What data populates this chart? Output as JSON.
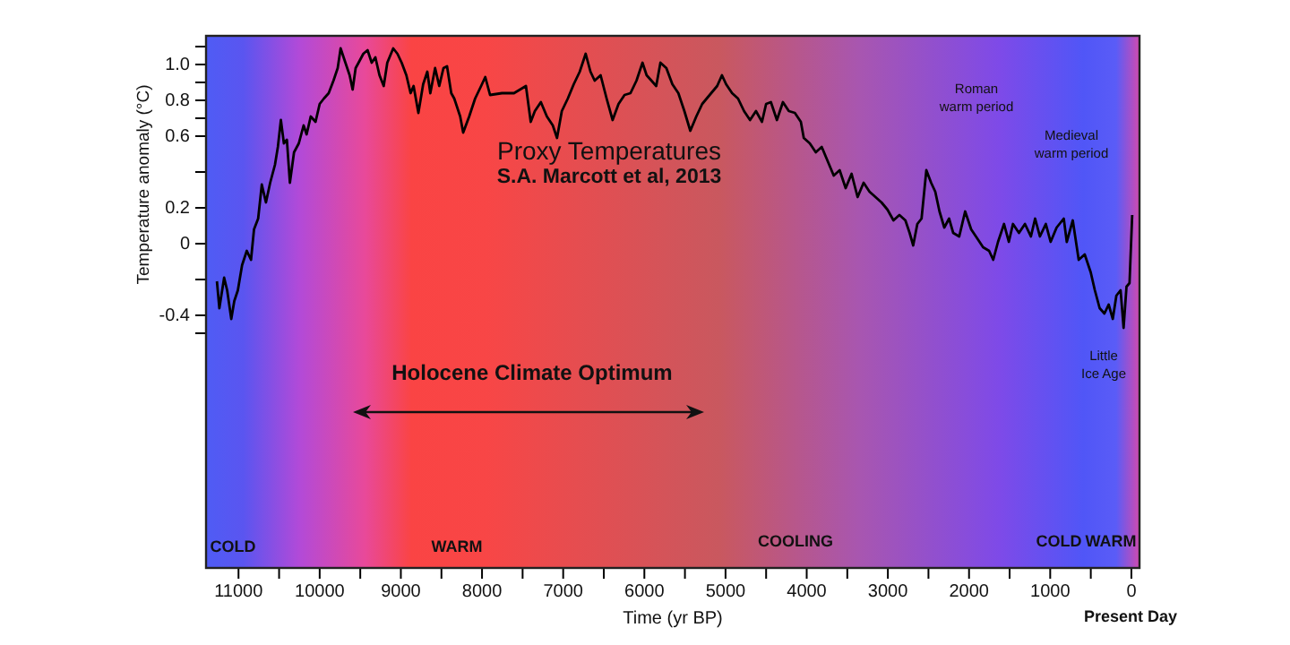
{
  "chart_data": {
    "type": "line",
    "title": "Proxy Temperatures",
    "subtitle": "S.A. Marcott et al, 2013",
    "xlabel": "Time (yr BP)",
    "ylabel": "Temperature anomaly (°C)",
    "annotations": [
      "Roman warm period",
      "Medieval warm period",
      "Little Ice Age",
      "Holocene Climate Optimum",
      "COLD",
      "WARM",
      "COOLING",
      "COLD",
      "WARM",
      "Present Day"
    ],
    "xlim": [
      11400,
      -100
    ],
    "xticks": [
      11000,
      {
        "value": 10500,
        "label": null
      },
      10000,
      {
        "value": 9500,
        "label": null
      },
      9000,
      {
        "value": 8500,
        "label": null
      },
      8000,
      {
        "value": 7500,
        "label": null
      },
      7000,
      {
        "value": 6500,
        "label": null
      },
      6000,
      {
        "value": 5500,
        "label": null
      },
      5000,
      {
        "value": 4500,
        "label": null
      },
      4000,
      {
        "value": 3500,
        "label": null
      },
      3000,
      {
        "value": 2500,
        "label": null
      },
      2000,
      {
        "value": 1500,
        "label": null
      },
      1000,
      {
        "value": 500,
        "label": null
      },
      0
    ],
    "ylim": [
      -1.81,
      1.16
    ],
    "yticks": [
      {
        "value": 1.1,
        "label": null
      },
      {
        "value": 1,
        "label": "1.0"
      },
      {
        "value": 0.9,
        "label": null
      },
      0.8,
      {
        "value": 0.7,
        "label": null
      },
      0.6,
      {
        "value": 0.4,
        "label": null
      },
      0.2,
      0,
      {
        "value": -0.2,
        "label": null
      },
      -0.4,
      {
        "value": -0.5,
        "label": null
      }
    ],
    "series": [
      {
        "color": "#000000",
        "x": [
          11266,
          11236,
          11177,
          11140,
          11089,
          11052,
          11008,
          10956,
          10898,
          10846,
          10809,
          10758,
          10713,
          10662,
          10610,
          10551,
          10515,
          10478,
          10441,
          10404,
          10367,
          10316,
          10257,
          10198,
          10161,
          10110,
          10051,
          10000,
          9948,
          9889,
          9830,
          9778,
          9742,
          9683,
          9631,
          9594,
          9557,
          9521,
          9462,
          9410,
          9359,
          9314,
          9263,
          9211,
          9167,
          9094,
          9042,
          8990,
          8932,
          8880,
          8843,
          8784,
          8725,
          8674,
          8637,
          8578,
          8527,
          8475,
          8431,
          8379,
          8342,
          8269,
          8232,
          8158,
          8085,
          8011,
          7960,
          7901,
          7754,
          7606,
          7459,
          7400,
          7349,
          7275,
          7201,
          7128,
          7076,
          7017,
          6943,
          6870,
          6796,
          6723,
          6664,
          6612,
          6539,
          6465,
          6391,
          6318,
          6244,
          6171,
          6097,
          6023,
          5972,
          5913,
          5854,
          5802,
          5729,
          5655,
          5581,
          5507,
          5434,
          5360,
          5287,
          5177,
          5103,
          5044,
          4993,
          4919,
          4846,
          4772,
          4698,
          4625,
          4551,
          4500,
          4441,
          4367,
          4293,
          4220,
          4146,
          4072,
          4036,
          3962,
          3888,
          3815,
          3741,
          3667,
          3594,
          3520,
          3447,
          3373,
          3299,
          3226,
          3152,
          3078,
          3005,
          2931,
          2858,
          2784,
          2732,
          2688,
          2637,
          2585,
          2526,
          2467,
          2416,
          2364,
          2305,
          2246,
          2195,
          2121,
          2048,
          1974,
          1900,
          1827,
          1753,
          1702,
          1643,
          1569,
          1510,
          1459,
          1385,
          1311,
          1238,
          1186,
          1127,
          1054,
          995,
          921,
          833,
          796,
          722,
          649,
          575,
          501,
          450,
          391,
          332,
          280,
          229,
          185,
          133,
          96,
          60,
          23,
          -10
        ],
        "values": [
          -0.21,
          -0.36,
          -0.19,
          -0.26,
          -0.42,
          -0.32,
          -0.26,
          -0.12,
          -0.04,
          -0.09,
          0.08,
          0.14,
          0.33,
          0.23,
          0.34,
          0.44,
          0.54,
          0.69,
          0.56,
          0.58,
          0.34,
          0.51,
          0.56,
          0.66,
          0.61,
          0.71,
          0.68,
          0.78,
          0.81,
          0.84,
          0.91,
          0.98,
          1.09,
          1.01,
          0.94,
          0.86,
          0.98,
          1.01,
          1.06,
          1.08,
          1.01,
          1.04,
          0.94,
          0.88,
          1.01,
          1.09,
          1.06,
          1.01,
          0.94,
          0.84,
          0.88,
          0.73,
          0.89,
          0.96,
          0.84,
          0.98,
          0.88,
          0.98,
          0.99,
          0.84,
          0.81,
          0.71,
          0.62,
          0.71,
          0.81,
          0.88,
          0.93,
          0.83,
          0.84,
          0.84,
          0.88,
          0.68,
          0.74,
          0.79,
          0.71,
          0.66,
          0.59,
          0.74,
          0.81,
          0.89,
          0.96,
          1.06,
          0.96,
          0.91,
          0.94,
          0.81,
          0.69,
          0.78,
          0.83,
          0.84,
          0.91,
          1.01,
          0.94,
          0.91,
          0.88,
          1.01,
          0.98,
          0.89,
          0.84,
          0.74,
          0.63,
          0.71,
          0.78,
          0.84,
          0.88,
          0.94,
          0.89,
          0.84,
          0.81,
          0.74,
          0.69,
          0.74,
          0.68,
          0.78,
          0.79,
          0.69,
          0.79,
          0.74,
          0.73,
          0.68,
          0.59,
          0.56,
          0.51,
          0.54,
          0.46,
          0.38,
          0.41,
          0.31,
          0.39,
          0.26,
          0.34,
          0.29,
          0.26,
          0.23,
          0.19,
          0.13,
          0.16,
          0.13,
          0.06,
          -0.01,
          0.11,
          0.14,
          0.41,
          0.34,
          0.29,
          0.18,
          0.09,
          0.14,
          0.06,
          0.04,
          0.18,
          0.08,
          0.03,
          -0.02,
          -0.04,
          -0.09,
          0.01,
          0.11,
          0.01,
          0.11,
          0.06,
          0.11,
          0.04,
          0.14,
          0.04,
          0.11,
          0.01,
          0.09,
          0.14,
          0.01,
          0.13,
          -0.09,
          -0.06,
          -0.16,
          -0.26,
          -0.36,
          -0.39,
          -0.34,
          -0.42,
          -0.29,
          -0.26,
          -0.47,
          -0.24,
          -0.22,
          0.16
        ]
      }
    ]
  }
}
